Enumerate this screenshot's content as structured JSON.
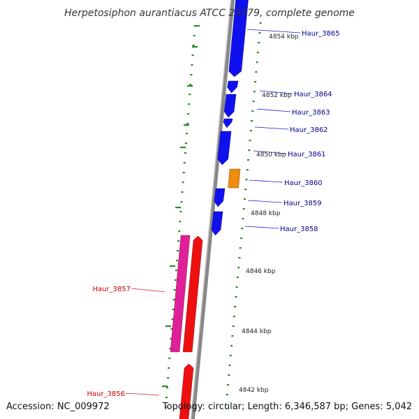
{
  "header": {
    "title": "Herpetosiphon aurantiacus ATCC 23779, complete genome"
  },
  "footer": {
    "accession": "Accession: NC_009972",
    "summary": "Topology: circular; Length: 6,346,587 bp; Genes: 5,042"
  },
  "colors": {
    "forward_cds": "#1010ee",
    "reverse_cds": "#ee1010",
    "reverse_other": "#e0209a",
    "forward_other": "#ee8c10",
    "backbone": "#888888",
    "tick": "#2a8a2a",
    "forward_label": "#00008b",
    "reverse_label": "#cc0000"
  },
  "scale_labels": [
    "4854 kbp",
    "4852 kbp",
    "4850 kbp",
    "4848 kbp",
    "4846 kbp",
    "4844 kbp",
    "4842 kbp"
  ],
  "forward_genes": [
    {
      "name": "Haur_3865",
      "type": "cds"
    },
    {
      "name": "Haur_3864",
      "type": "cds"
    },
    {
      "name": "Haur_3863",
      "type": "cds"
    },
    {
      "name": "Haur_3862",
      "type": "cds"
    },
    {
      "name": "Haur_3861",
      "type": "cds"
    },
    {
      "name": "Haur_3860",
      "type": "other"
    },
    {
      "name": "Haur_3859",
      "type": "cds"
    },
    {
      "name": "Haur_3858",
      "type": "cds"
    }
  ],
  "reverse_genes": [
    {
      "name": "Haur_3857",
      "type": "cds"
    },
    {
      "name": "Haur_3856",
      "type": "cds"
    }
  ]
}
